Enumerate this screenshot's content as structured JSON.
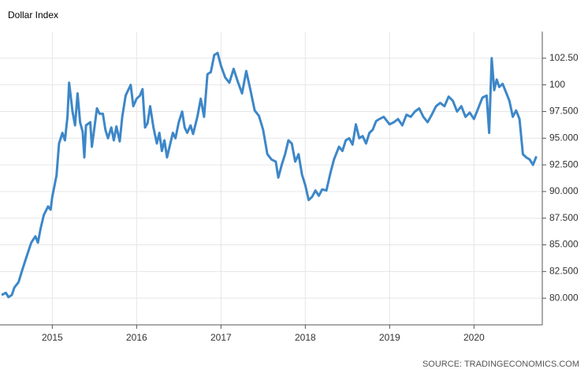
{
  "chart_data": {
    "type": "line",
    "title": "Dollar Index",
    "source": "SOURCE: TRADINGECONOMICS.COM",
    "xlim": [
      2014.38,
      2020.81
    ],
    "xticks": [
      2015,
      2016,
      2017,
      2018,
      2019,
      2020
    ],
    "ylim": [
      77.5,
      105
    ],
    "yticks": [
      {
        "value": 80,
        "label": "80.000"
      },
      {
        "value": 82.5,
        "label": "82.500"
      },
      {
        "value": 85,
        "label": "85.000"
      },
      {
        "value": 87.5,
        "label": "87.500"
      },
      {
        "value": 90,
        "label": "90.000"
      },
      {
        "value": 92.5,
        "label": "92.500"
      },
      {
        "value": 95,
        "label": "95.000"
      },
      {
        "value": 97.5,
        "label": "97.500"
      },
      100,
      {
        "value": 102.5,
        "label": "102.50"
      }
    ],
    "grid": true,
    "x": [
      2014.4,
      2014.45,
      2014.48,
      2014.52,
      2014.55,
      2014.6,
      2014.65,
      2014.7,
      2014.75,
      2014.8,
      2014.83,
      2014.86,
      2014.9,
      2014.95,
      2014.98,
      2015.0,
      2015.05,
      2015.08,
      2015.12,
      2015.15,
      2015.18,
      2015.2,
      2015.24,
      2015.27,
      2015.3,
      2015.33,
      2015.36,
      2015.38,
      2015.4,
      2015.45,
      2015.47,
      2015.5,
      2015.53,
      2015.56,
      2015.6,
      2015.63,
      2015.66,
      2015.7,
      2015.73,
      2015.76,
      2015.8,
      2015.83,
      2015.87,
      2015.9,
      2015.93,
      2015.96,
      2016.0,
      2016.04,
      2016.07,
      2016.1,
      2016.13,
      2016.16,
      2016.2,
      2016.24,
      2016.27,
      2016.3,
      2016.33,
      2016.36,
      2016.4,
      2016.43,
      2016.46,
      2016.5,
      2016.54,
      2016.57,
      2016.6,
      2016.64,
      2016.67,
      2016.72,
      2016.76,
      2016.8,
      2016.84,
      2016.88,
      2016.92,
      2016.96,
      2017.0,
      2017.05,
      2017.1,
      2017.15,
      2017.2,
      2017.25,
      2017.3,
      2017.35,
      2017.4,
      2017.45,
      2017.5,
      2017.55,
      2017.6,
      2017.65,
      2017.68,
      2017.72,
      2017.76,
      2017.8,
      2017.84,
      2017.88,
      2017.92,
      2017.96,
      2018.0,
      2018.04,
      2018.08,
      2018.12,
      2018.16,
      2018.2,
      2018.25,
      2018.3,
      2018.34,
      2018.4,
      2018.44,
      2018.48,
      2018.52,
      2018.56,
      2018.6,
      2018.64,
      2018.68,
      2018.72,
      2018.76,
      2018.8,
      2018.84,
      2018.88,
      2018.93,
      2019.0,
      2019.05,
      2019.1,
      2019.15,
      2019.2,
      2019.25,
      2019.3,
      2019.35,
      2019.4,
      2019.45,
      2019.5,
      2019.55,
      2019.6,
      2019.65,
      2019.7,
      2019.75,
      2019.8,
      2019.85,
      2019.9,
      2019.95,
      2020.0,
      2020.05,
      2020.1,
      2020.15,
      2020.18,
      2020.21,
      2020.24,
      2020.27,
      2020.3,
      2020.34,
      2020.38,
      2020.42,
      2020.46,
      2020.5,
      2020.54,
      2020.58,
      2020.62,
      2020.66,
      2020.7,
      2020.74
    ],
    "series": [
      {
        "name": "Dollar Index",
        "color": "#3d87c8",
        "values": [
          80.3,
          80.5,
          80.1,
          80.3,
          81.0,
          81.5,
          82.8,
          84.0,
          85.2,
          85.8,
          85.2,
          86.5,
          87.8,
          88.6,
          88.3,
          89.5,
          91.5,
          94.5,
          95.5,
          94.8,
          97.0,
          100.2,
          97.5,
          96.2,
          99.2,
          96.5,
          95.6,
          93.2,
          96.2,
          96.5,
          94.2,
          96.0,
          97.8,
          97.3,
          97.3,
          95.8,
          95.0,
          96.0,
          94.8,
          96.1,
          94.7,
          97.0,
          99.0,
          99.5,
          100.0,
          98.0,
          98.7,
          99.0,
          99.6,
          96.0,
          96.4,
          98.0,
          96.0,
          94.5,
          95.5,
          93.8,
          94.8,
          93.2,
          94.5,
          95.5,
          95.0,
          96.5,
          97.5,
          96.0,
          95.5,
          96.2,
          95.4,
          97.0,
          98.7,
          97.0,
          101.0,
          101.2,
          102.8,
          103.0,
          101.8,
          100.7,
          100.2,
          101.5,
          100.3,
          99.2,
          101.3,
          99.5,
          97.6,
          97.1,
          95.8,
          93.5,
          93.0,
          92.8,
          91.3,
          92.5,
          93.5,
          94.8,
          94.5,
          92.8,
          93.5,
          91.6,
          90.6,
          89.2,
          89.5,
          90.1,
          89.6,
          90.2,
          90.1,
          91.8,
          93.0,
          94.2,
          93.8,
          94.8,
          95.0,
          94.4,
          96.3,
          95.0,
          95.2,
          94.5,
          95.5,
          95.8,
          96.6,
          96.8,
          97.0,
          96.3,
          96.5,
          96.8,
          96.2,
          97.2,
          97.0,
          97.5,
          97.8,
          97.0,
          96.5,
          97.2,
          98.0,
          98.3,
          98.0,
          98.9,
          98.5,
          97.5,
          98.0,
          97.0,
          97.4,
          96.8,
          97.8,
          98.8,
          99.0,
          95.5,
          102.5,
          99.5,
          100.5,
          99.8,
          100.1,
          99.3,
          98.5,
          97.0,
          97.6,
          96.8,
          93.5,
          93.2,
          93.0,
          92.5,
          93.3
        ]
      }
    ]
  }
}
